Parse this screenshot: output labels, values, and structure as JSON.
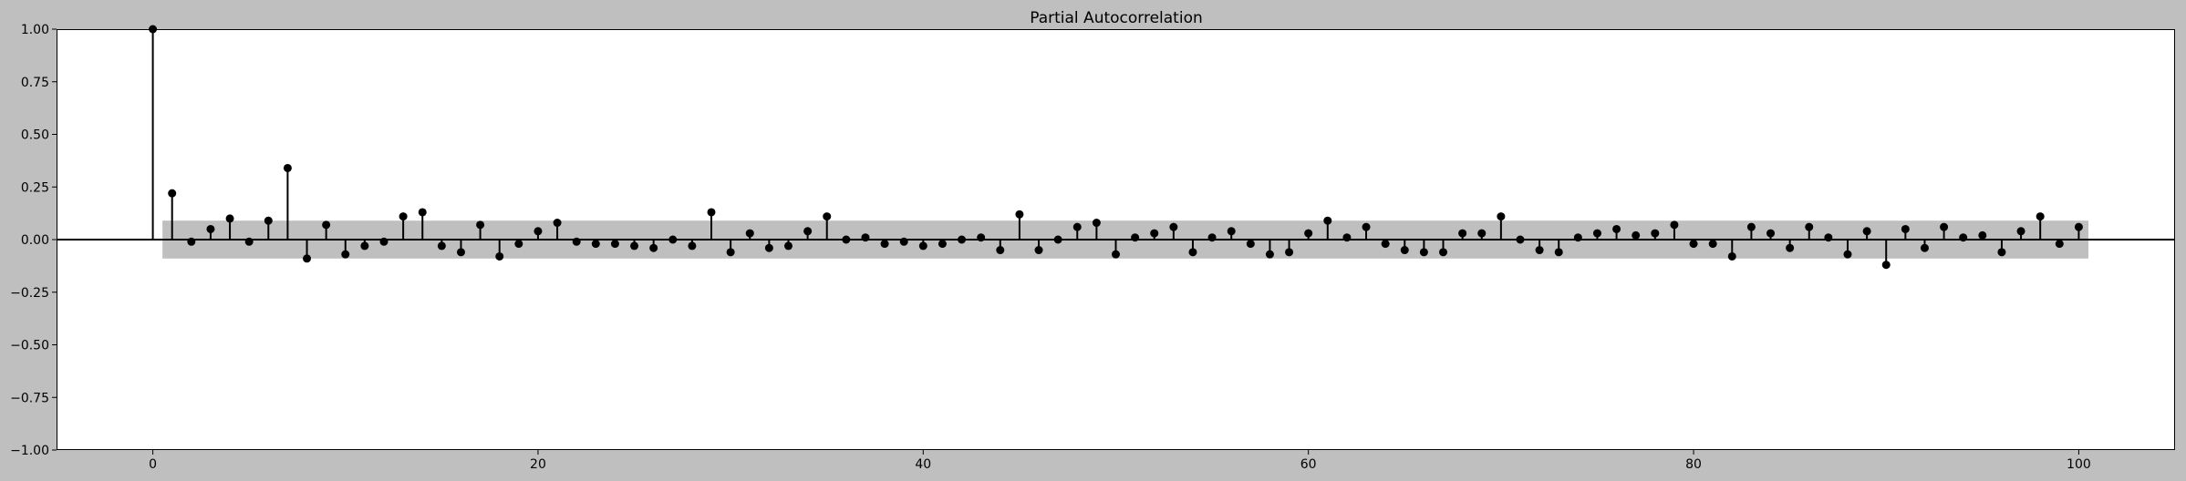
{
  "chart_data": {
    "type": "stem",
    "title": "Partial Autocorrelation",
    "xlabel": "",
    "ylabel": "",
    "xlim": [
      -5,
      105
    ],
    "ylim": [
      -1.0,
      1.0
    ],
    "x_ticks": [
      0,
      20,
      40,
      60,
      80,
      100
    ],
    "y_ticks": [
      -1.0,
      -0.75,
      -0.5,
      -0.25,
      0.0,
      0.25,
      0.5,
      0.75,
      1.0
    ],
    "x_tick_labels": [
      "0",
      "20",
      "40",
      "60",
      "80",
      "100"
    ],
    "y_tick_labels": [
      "−1.00",
      "−0.75",
      "−0.50",
      "−0.25",
      "0.00",
      "0.25",
      "0.50",
      "0.75",
      "1.00"
    ],
    "grid": false,
    "confidence_band": {
      "lower": -0.09,
      "upper": 0.09,
      "x_start": 0.5,
      "x_end": 100.5,
      "color": "#bfbfbf"
    },
    "lags": [
      0,
      1,
      2,
      3,
      4,
      5,
      6,
      7,
      8,
      9,
      10,
      11,
      12,
      13,
      14,
      15,
      16,
      17,
      18,
      19,
      20,
      21,
      22,
      23,
      24,
      25,
      26,
      27,
      28,
      29,
      30,
      31,
      32,
      33,
      34,
      35,
      36,
      37,
      38,
      39,
      40,
      41,
      42,
      43,
      44,
      45,
      46,
      47,
      48,
      49,
      50,
      51,
      52,
      53,
      54,
      55,
      56,
      57,
      58,
      59,
      60,
      61,
      62,
      63,
      64,
      65,
      66,
      67,
      68,
      69,
      70,
      71,
      72,
      73,
      74,
      75,
      76,
      77,
      78,
      79,
      80,
      81,
      82,
      83,
      84,
      85,
      86,
      87,
      88,
      89,
      90,
      91,
      92,
      93,
      94,
      95,
      96,
      97,
      98,
      99,
      100
    ],
    "values": [
      1.0,
      0.22,
      -0.01,
      0.05,
      0.1,
      -0.01,
      0.09,
      0.34,
      -0.09,
      0.07,
      -0.07,
      -0.03,
      -0.01,
      0.11,
      0.13,
      -0.03,
      -0.06,
      0.07,
      -0.08,
      -0.02,
      0.04,
      0.08,
      -0.01,
      -0.02,
      -0.02,
      -0.03,
      -0.04,
      0.0,
      -0.03,
      0.13,
      -0.06,
      0.03,
      -0.04,
      -0.03,
      0.04,
      0.11,
      0.0,
      0.01,
      -0.02,
      -0.01,
      -0.03,
      -0.02,
      0.0,
      0.01,
      -0.05,
      0.12,
      -0.05,
      0.0,
      0.06,
      0.08,
      -0.07,
      0.01,
      0.03,
      0.06,
      -0.06,
      0.01,
      0.04,
      -0.02,
      -0.07,
      -0.06,
      0.03,
      0.09,
      0.01,
      0.06,
      -0.02,
      -0.05,
      -0.06,
      -0.06,
      0.03,
      0.03,
      0.11,
      0.0,
      -0.05,
      -0.06,
      0.01,
      0.03,
      0.05,
      0.02,
      0.03,
      0.07,
      -0.02,
      -0.02,
      -0.08,
      0.06,
      0.03,
      -0.04,
      0.06,
      0.01,
      -0.07,
      0.04,
      -0.12,
      0.05,
      -0.04,
      0.06,
      0.01,
      0.02,
      -0.06,
      0.04,
      0.11,
      -0.02,
      0.06
    ],
    "colors": {
      "figure_bg": "#bfbfbf",
      "axes_bg": "#ffffff",
      "stem": "#000000",
      "band": "#bfbfbf"
    }
  }
}
